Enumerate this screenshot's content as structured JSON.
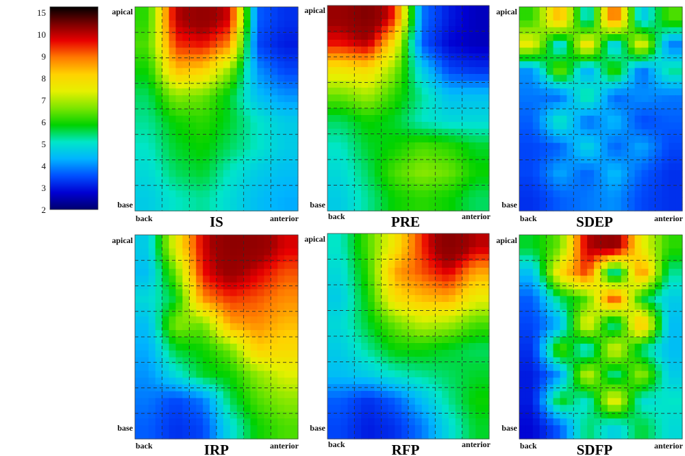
{
  "chart_data": {
    "type": "heatmap",
    "colorbar": {
      "ticks": [
        "15",
        "10",
        "9",
        "8",
        "7",
        "6",
        "5",
        "4",
        "3",
        "2"
      ],
      "colors": [
        "#000000",
        "#7a0000",
        "#e80000",
        "#ff7a00",
        "#ffd200",
        "#e6f000",
        "#7ce600",
        "#00d200",
        "#00e6c8",
        "#00b4ff",
        "#0050ff",
        "#0000d2",
        "#00006e"
      ]
    },
    "panels": [
      {
        "title": "IS",
        "top_label": "apical",
        "bottom_label": "base",
        "left_label": "back",
        "right_label": "anterior",
        "columns": 6,
        "rows": 8,
        "values": [
          [
            6.0,
            9.8,
            10.4,
            9.6,
            3.6,
            3.2
          ],
          [
            6.2,
            9.2,
            9.4,
            8.6,
            3.4,
            3.0
          ],
          [
            5.8,
            8.2,
            8.0,
            6.6,
            4.0,
            3.4
          ],
          [
            5.4,
            6.6,
            6.4,
            5.6,
            4.4,
            4.0
          ],
          [
            5.2,
            5.8,
            6.0,
            5.6,
            5.0,
            4.6
          ],
          [
            5.0,
            5.6,
            5.8,
            5.4,
            5.0,
            4.6
          ],
          [
            4.8,
            5.4,
            5.6,
            5.0,
            4.6,
            4.4
          ],
          [
            4.6,
            5.0,
            5.2,
            4.8,
            4.4,
            4.2
          ]
        ]
      },
      {
        "title": "PRE",
        "top_label": "apical",
        "bottom_label": "base",
        "left_label": "back",
        "right_label": "anterior",
        "columns": 6,
        "rows": 8,
        "values": [
          [
            10.2,
            11.0,
            9.2,
            3.8,
            3.0,
            2.6
          ],
          [
            9.4,
            9.8,
            7.6,
            3.6,
            2.8,
            2.6
          ],
          [
            7.6,
            7.8,
            6.6,
            4.6,
            3.4,
            3.2
          ],
          [
            6.4,
            6.8,
            6.0,
            5.2,
            4.4,
            4.4
          ],
          [
            5.4,
            5.8,
            5.6,
            5.0,
            4.8,
            4.8
          ],
          [
            5.0,
            5.6,
            5.8,
            6.2,
            6.0,
            5.6
          ],
          [
            4.8,
            5.4,
            6.2,
            6.6,
            6.4,
            5.8
          ],
          [
            4.6,
            5.2,
            5.8,
            6.0,
            5.8,
            5.4
          ]
        ]
      },
      {
        "title": "SDEP",
        "top_label": "apical",
        "bottom_label": "base",
        "left_label": "back",
        "right_label": "anterior",
        "columns": 6,
        "rows": 8,
        "values": [
          [
            6.0,
            8.4,
            4.6,
            9.2,
            4.4,
            6.2
          ],
          [
            7.4,
            4.4,
            8.0,
            4.2,
            7.6,
            3.8
          ],
          [
            4.0,
            6.6,
            4.0,
            6.2,
            3.6,
            5.2
          ],
          [
            3.8,
            3.6,
            5.4,
            3.6,
            4.0,
            3.8
          ],
          [
            3.6,
            5.2,
            3.6,
            4.4,
            3.4,
            3.6
          ],
          [
            3.4,
            3.6,
            4.8,
            3.6,
            4.2,
            3.4
          ],
          [
            3.4,
            4.2,
            3.6,
            4.4,
            3.6,
            3.2
          ],
          [
            3.2,
            3.6,
            3.8,
            4.0,
            3.4,
            3.2
          ]
        ]
      },
      {
        "title": "IRP",
        "top_label": "apical",
        "bottom_label": "base",
        "left_label": "back",
        "right_label": "anterior",
        "columns": 6,
        "rows": 8,
        "values": [
          [
            4.6,
            7.4,
            9.6,
            10.6,
            10.4,
            9.6
          ],
          [
            4.4,
            6.4,
            9.4,
            10.2,
            9.6,
            9.0
          ],
          [
            4.8,
            5.6,
            8.6,
            9.2,
            9.0,
            8.6
          ],
          [
            4.4,
            6.6,
            6.4,
            8.4,
            8.6,
            8.2
          ],
          [
            4.2,
            5.6,
            5.8,
            6.4,
            8.0,
            7.8
          ],
          [
            4.0,
            4.8,
            5.6,
            5.8,
            6.6,
            7.2
          ],
          [
            3.8,
            3.4,
            3.8,
            5.4,
            6.2,
            6.6
          ],
          [
            3.6,
            3.2,
            3.4,
            4.8,
            5.8,
            6.2
          ]
        ]
      },
      {
        "title": "RFP",
        "top_label": "apical",
        "bottom_label": "base",
        "left_label": "back",
        "right_label": "anterior",
        "columns": 6,
        "rows": 8,
        "values": [
          [
            5.0,
            6.2,
            7.6,
            9.2,
            10.8,
            9.8
          ],
          [
            4.8,
            6.0,
            8.4,
            9.0,
            9.6,
            8.4
          ],
          [
            4.6,
            5.8,
            7.8,
            8.2,
            8.4,
            7.4
          ],
          [
            4.8,
            5.6,
            6.4,
            7.0,
            6.8,
            6.2
          ],
          [
            4.6,
            5.2,
            5.8,
            5.8,
            5.6,
            5.4
          ],
          [
            4.4,
            4.6,
            5.0,
            5.2,
            5.4,
            5.6
          ],
          [
            3.6,
            3.2,
            3.6,
            4.4,
            5.2,
            5.8
          ],
          [
            3.4,
            3.0,
            3.2,
            3.8,
            4.8,
            5.6
          ]
        ]
      },
      {
        "title": "SDFP",
        "top_label": "apical",
        "bottom_label": "base",
        "left_label": "back",
        "right_label": "anterior",
        "columns": 6,
        "rows": 8,
        "values": [
          [
            5.6,
            6.4,
            9.8,
            10.4,
            7.4,
            6.0
          ],
          [
            4.4,
            7.8,
            9.2,
            4.6,
            8.8,
            5.2
          ],
          [
            3.6,
            5.4,
            6.2,
            9.4,
            5.6,
            4.6
          ],
          [
            3.4,
            4.2,
            7.6,
            4.8,
            8.6,
            4.4
          ],
          [
            3.2,
            6.4,
            4.6,
            7.4,
            5.2,
            4.4
          ],
          [
            3.0,
            4.0,
            7.2,
            5.0,
            6.8,
            4.6
          ],
          [
            3.0,
            5.8,
            4.8,
            7.6,
            4.8,
            5.0
          ],
          [
            2.8,
            3.6,
            5.4,
            4.6,
            5.6,
            4.8
          ]
        ]
      }
    ]
  }
}
